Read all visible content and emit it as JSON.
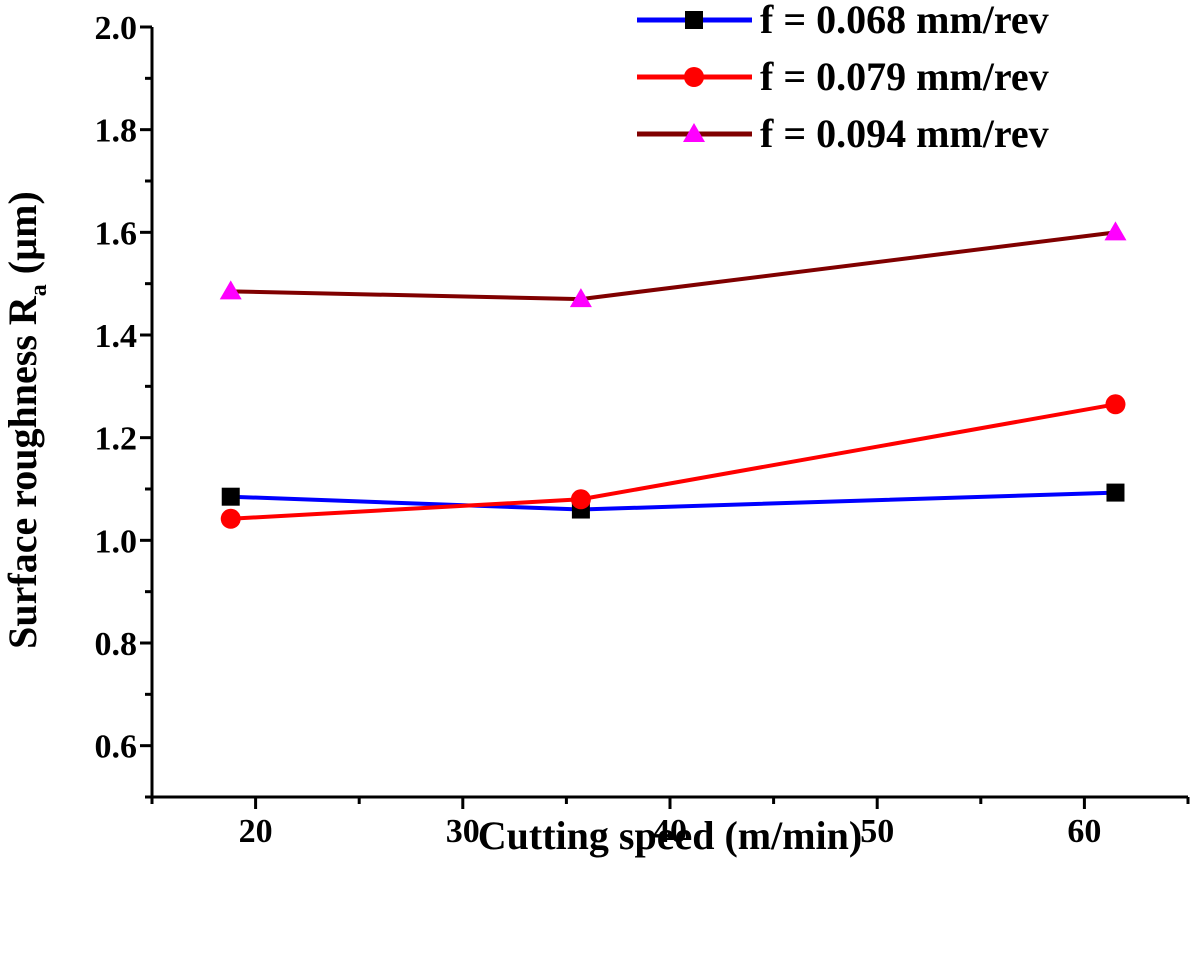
{
  "chart_data": {
    "type": "line",
    "xlabel": "Cutting speed (m/min)",
    "ylabel": "Surface roughness R",
    "ylabel_subscript": "a",
    "ylabel_unit": " (µm)",
    "xlim": [
      15,
      65
    ],
    "ylim": [
      0.5,
      2.0
    ],
    "x_ticks": [
      20,
      30,
      40,
      50,
      60
    ],
    "y_ticks": [
      0.6,
      0.8,
      1.0,
      1.2,
      1.4,
      1.6,
      1.8,
      2.0
    ],
    "x_tick_labels": [
      "20",
      "30",
      "40",
      "50",
      "60"
    ],
    "y_tick_labels": [
      "0.6",
      "0.8",
      "1.0",
      "1.2",
      "1.4",
      "1.6",
      "1.8",
      "2.0"
    ],
    "grid": false,
    "legend_position": "top-right",
    "series": [
      {
        "name": "f = 0.068 mm/rev",
        "color": "#0000ff",
        "marker": "square",
        "marker_color": "#000000",
        "x": [
          18.8,
          35.7,
          61.5
        ],
        "y": [
          1.085,
          1.06,
          1.093
        ]
      },
      {
        "name": "f = 0.079 mm/rev",
        "color": "#ff0000",
        "marker": "circle",
        "marker_color": "#ff0000",
        "x": [
          18.8,
          35.7,
          61.5
        ],
        "y": [
          1.042,
          1.08,
          1.265
        ]
      },
      {
        "name": "f = 0.094 mm/rev",
        "color": "#800000",
        "marker": "triangle",
        "marker_color": "#ff00ff",
        "x": [
          18.8,
          35.7,
          61.5
        ],
        "y": [
          1.485,
          1.47,
          1.6
        ]
      }
    ]
  }
}
